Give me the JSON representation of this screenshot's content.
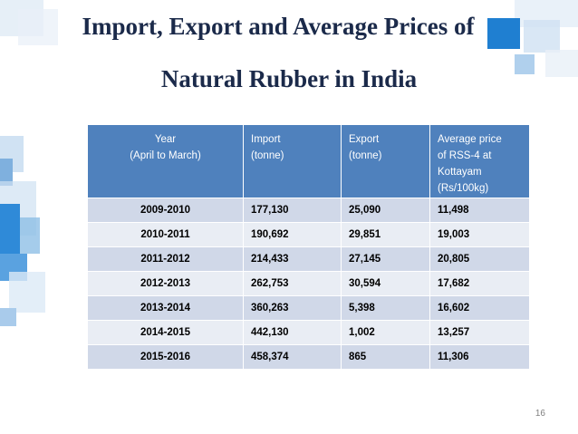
{
  "slide": {
    "title_line1": "Import, Export and Average Prices of",
    "title_line2": "Natural Rubber in India",
    "page_number": "16"
  },
  "table": {
    "headers": [
      {
        "line1": "Year",
        "line2": "(April to March)"
      },
      {
        "line1": "Import",
        "line2": "(tonne)"
      },
      {
        "line1": "Export",
        "line2": "(tonne)"
      },
      {
        "line1": "Average price",
        "line2": "of RSS-4 at",
        "line3": "Kottayam",
        "line4": "(Rs/100kg)"
      }
    ],
    "rows": [
      [
        "2009-2010",
        "177,130",
        "25,090",
        "11,498"
      ],
      [
        "2010-2011",
        "190,692",
        "29,851",
        "19,003"
      ],
      [
        "2011-2012",
        "214,433",
        "27,145",
        "20,805"
      ],
      [
        "2012-2013",
        "262,753",
        "30,594",
        "17,682"
      ],
      [
        "2013-2014",
        "360,263",
        "5,398",
        "16,602"
      ],
      [
        "2014-2015",
        "442,130",
        "1,002",
        "13,257"
      ],
      [
        "2015-2016",
        "458,374",
        "865",
        "11,306"
      ]
    ]
  },
  "colors": {
    "header_bg": "#4f81bd",
    "row_dark": "#d0d8e8",
    "row_light": "#e9edf4",
    "title": "#1b2a4a",
    "accent": "#1f7fd1"
  }
}
